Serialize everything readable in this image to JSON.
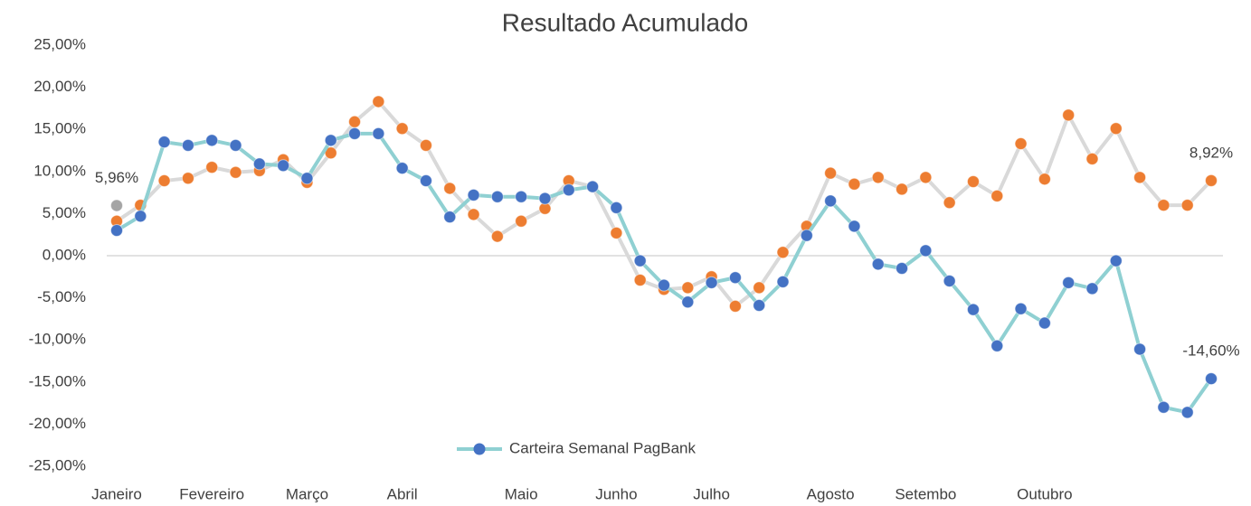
{
  "chart_data": {
    "type": "line",
    "title": "Resultado Acumulado",
    "categories": [
      "Janeiro",
      null,
      null,
      null,
      "Fevereiro",
      null,
      null,
      null,
      "Março",
      null,
      null,
      null,
      "Abril",
      null,
      null,
      null,
      null,
      "Maio",
      null,
      null,
      null,
      "Junho",
      null,
      null,
      null,
      "Julho",
      null,
      null,
      null,
      null,
      "Agosto",
      null,
      null,
      null,
      "Setembo",
      null,
      null,
      null,
      null,
      "Outubro",
      null,
      null,
      null,
      null,
      null,
      null,
      null
    ],
    "series": [
      {
        "color": "#ed7d31",
        "line_color": "#d9d9d9",
        "values": [
          4.1,
          6.0,
          8.9,
          9.2,
          10.5,
          9.9,
          10.1,
          11.4,
          8.7,
          12.2,
          15.9,
          18.3,
          15.1,
          13.1,
          8.0,
          4.9,
          2.3,
          4.1,
          5.6,
          8.9,
          8.2,
          2.7,
          -2.9,
          -4.0,
          -3.8,
          -2.5,
          -6.0,
          -3.8,
          0.4,
          3.5,
          9.8,
          8.5,
          9.3,
          7.9,
          9.3,
          6.3,
          8.8,
          7.1,
          13.3,
          9.1,
          16.7,
          11.5,
          15.1,
          9.3,
          6.0,
          6.0,
          8.92
        ],
        "value_labels": [
          null,
          null,
          null,
          null,
          null,
          null,
          null,
          null,
          null,
          null,
          null,
          null,
          null,
          null,
          null,
          null,
          null,
          null,
          null,
          null,
          null,
          null,
          null,
          null,
          null,
          null,
          null,
          null,
          null,
          null,
          null,
          null,
          null,
          null,
          null,
          null,
          null,
          null,
          null,
          null,
          null,
          null,
          null,
          null,
          null,
          null,
          "8,92%"
        ]
      },
      {
        "name": "Carteira Semanal PagBank",
        "color": "#4472c4",
        "line_color": "#8fd0d2",
        "values": [
          3.0,
          4.7,
          13.5,
          13.1,
          13.7,
          13.1,
          10.9,
          10.7,
          9.2,
          13.7,
          14.5,
          14.5,
          10.4,
          8.9,
          4.6,
          7.2,
          7.0,
          7.0,
          6.8,
          7.8,
          8.2,
          5.7,
          -0.6,
          -3.5,
          -5.5,
          -3.2,
          -2.6,
          -5.9,
          -3.1,
          2.4,
          6.5,
          3.5,
          -1.0,
          -1.5,
          0.6,
          -3.0,
          -6.4,
          -10.7,
          -6.3,
          -8.0,
          -3.2,
          -3.9,
          -0.6,
          -11.1,
          -18.0,
          -18.6,
          -14.6
        ],
        "value_labels": [
          null,
          null,
          null,
          null,
          null,
          null,
          null,
          null,
          null,
          null,
          null,
          null,
          null,
          null,
          null,
          null,
          null,
          null,
          null,
          null,
          null,
          null,
          null,
          null,
          null,
          null,
          null,
          null,
          null,
          null,
          null,
          null,
          null,
          null,
          null,
          null,
          null,
          null,
          null,
          null,
          null,
          null,
          null,
          null,
          null,
          null,
          "-14,60%"
        ]
      },
      {
        "color": "#a5a5a5",
        "values": [
          5.96,
          null,
          null,
          null,
          null,
          null,
          null,
          null,
          null,
          null,
          null,
          null,
          null,
          null,
          null,
          null,
          null,
          null,
          null,
          null,
          null,
          null,
          null,
          null,
          null,
          null,
          null,
          null,
          null,
          null,
          null,
          null,
          null,
          null,
          null,
          null,
          null,
          null,
          null,
          null,
          null,
          null,
          null,
          null,
          null,
          null,
          null
        ],
        "value_labels": [
          "5,96%",
          null,
          null,
          null,
          null,
          null,
          null,
          null,
          null,
          null,
          null,
          null,
          null,
          null,
          null,
          null,
          null,
          null,
          null,
          null,
          null,
          null,
          null,
          null,
          null,
          null,
          null,
          null,
          null,
          null,
          null,
          null,
          null,
          null,
          null,
          null,
          null,
          null,
          null,
          null,
          null,
          null,
          null,
          null,
          null,
          null,
          null
        ]
      }
    ],
    "ylim": [
      -25,
      25
    ],
    "yticks": [
      {
        "value": -25,
        "label": "-25,00%"
      },
      {
        "value": -20,
        "label": "-20,00%"
      },
      {
        "value": -15,
        "label": "-15,00%"
      },
      {
        "value": -10,
        "label": "-10,00%"
      },
      {
        "value": -5,
        "label": "-5,00%"
      },
      {
        "value": 0,
        "label": "0,00%"
      },
      {
        "value": 5,
        "label": "5,00%"
      },
      {
        "value": 10,
        "label": "10,00%"
      },
      {
        "value": 15,
        "label": "15,00%"
      },
      {
        "value": 20,
        "label": "20,00%"
      },
      {
        "value": 25,
        "label": "25,00%"
      }
    ],
    "grid": false,
    "legend": "bottom"
  }
}
